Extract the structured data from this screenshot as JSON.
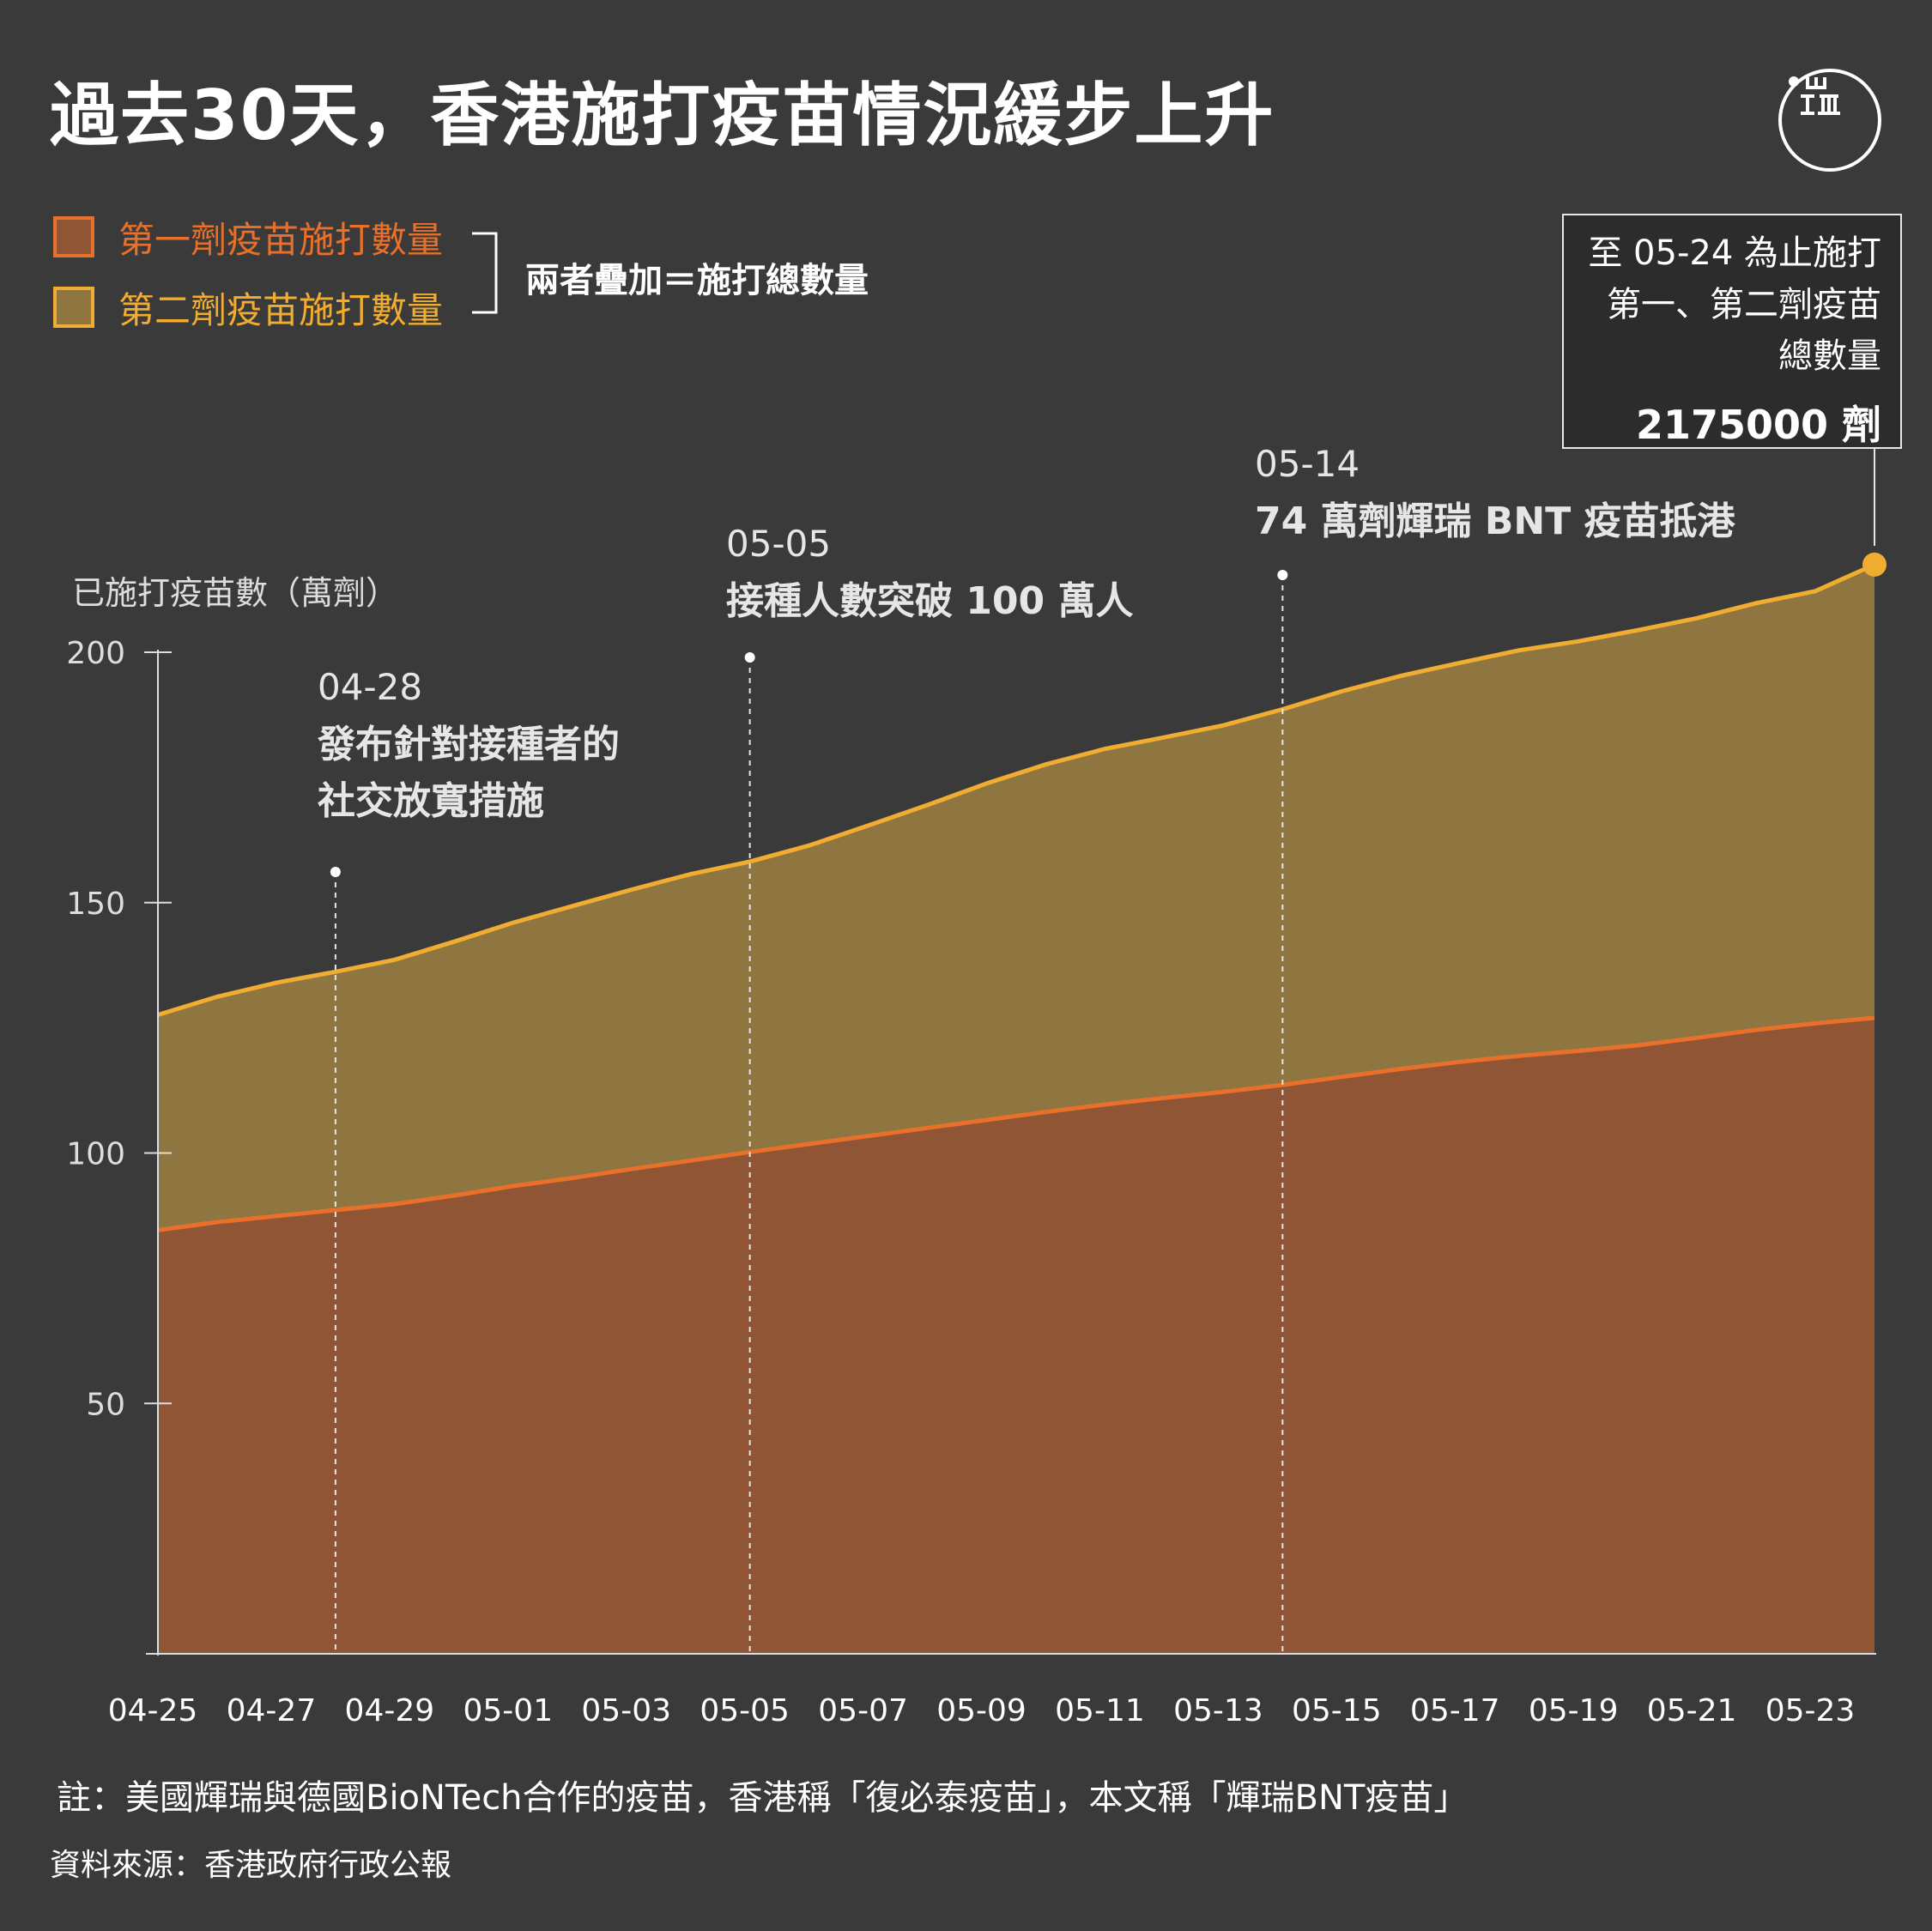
{
  "title": "過去30天，香港施打疫苗情況緩步上升",
  "legend": {
    "first_dose": "第一劑疫苗施打數量",
    "second_dose": "第二劑疫苗施打數量",
    "note": "兩者疊加＝施打總數量"
  },
  "total_box": {
    "line1": "至 05-24 為止施打",
    "line2": "第一、第二劑疫苗",
    "line3": "總數量",
    "value": "2175000 劑"
  },
  "colors": {
    "background": "#3a3a3a",
    "first_dose_fill": "#8f5534",
    "first_dose_line": "#e8702a",
    "second_dose_fill": "#8f7641",
    "second_dose_line": "#f1ad32",
    "axis": "#dddddd"
  },
  "chart_data": {
    "type": "area",
    "stacked": true,
    "ylabel": "已施打疫苗數（萬劑）",
    "yticks": [
      50,
      100,
      150,
      200
    ],
    "ylim": [
      0,
      200
    ],
    "x_tick_labels": [
      "04-25",
      "04-27",
      "04-29",
      "05-01",
      "05-03",
      "05-05",
      "05-07",
      "05-09",
      "05-11",
      "05-13",
      "05-15",
      "05-17",
      "05-19",
      "05-21",
      "05-23"
    ],
    "x": [
      "04-25",
      "04-26",
      "04-27",
      "04-28",
      "04-29",
      "04-30",
      "05-01",
      "05-02",
      "05-03",
      "05-04",
      "05-05",
      "05-06",
      "05-07",
      "05-08",
      "05-09",
      "05-10",
      "05-11",
      "05-12",
      "05-13",
      "05-14",
      "05-15",
      "05-16",
      "05-17",
      "05-18",
      "05-19",
      "05-20",
      "05-21",
      "05-22",
      "05-23",
      "05-24"
    ],
    "series": [
      {
        "name": "第一劑疫苗施打數量",
        "values": [
          84.6,
          86.2,
          87.4,
          88.6,
          89.8,
          91.5,
          93.4,
          95.0,
          96.8,
          98.5,
          100.2,
          101.8,
          103.4,
          105.0,
          106.6,
          108.2,
          109.7,
          111.0,
          112.2,
          113.6,
          115.2,
          116.8,
          118.2,
          119.4,
          120.4,
          121.5,
          123.0,
          124.6,
          125.9,
          127.0
        ]
      },
      {
        "name": "第二劑疫苗施打數量",
        "values": [
          43.0,
          45.0,
          46.6,
          47.6,
          48.8,
          50.7,
          52.6,
          54.3,
          55.8,
          57.2,
          58.0,
          59.6,
          62.0,
          64.5,
          67.2,
          69.4,
          71.0,
          72.0,
          73.2,
          75.0,
          77.0,
          78.5,
          79.7,
          81.0,
          81.8,
          82.9,
          83.8,
          85.2,
          86.3,
          90.5
        ]
      }
    ],
    "annotations": [
      {
        "date": "04-28",
        "date_label": "04-28",
        "text_line1": "發布針對接種者的",
        "text_line2": "社交放寬措施"
      },
      {
        "date": "05-05",
        "date_label": "05-05",
        "text": "接種人數突破 100 萬人"
      },
      {
        "date": "05-14",
        "date_label": "05-14",
        "text": "74 萬劑輝瑞 BNT 疫苗抵港"
      }
    ]
  },
  "footnote": "註：美國輝瑞與德國BioNTech合作的疫苗，香港稱「復必泰疫苗」，本文稱「輝瑞BNT疫苗」",
  "source": "資料來源：香港政府行政公報"
}
